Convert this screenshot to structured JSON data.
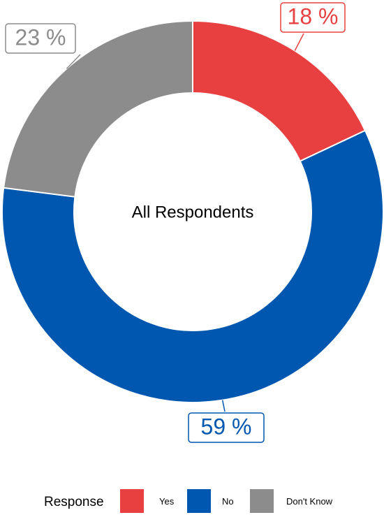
{
  "chart_data": {
    "type": "pie",
    "title": "All Respondents",
    "legend_title": "Response",
    "legend_position": "bottom",
    "categories": [
      "Yes",
      "No",
      "Don't Know"
    ],
    "values": [
      18,
      59,
      23
    ],
    "data_labels": [
      "18 %",
      "59 %",
      "23 %"
    ],
    "colors": [
      "#e84040",
      "#0057b0",
      "#8c8c8c"
    ]
  }
}
